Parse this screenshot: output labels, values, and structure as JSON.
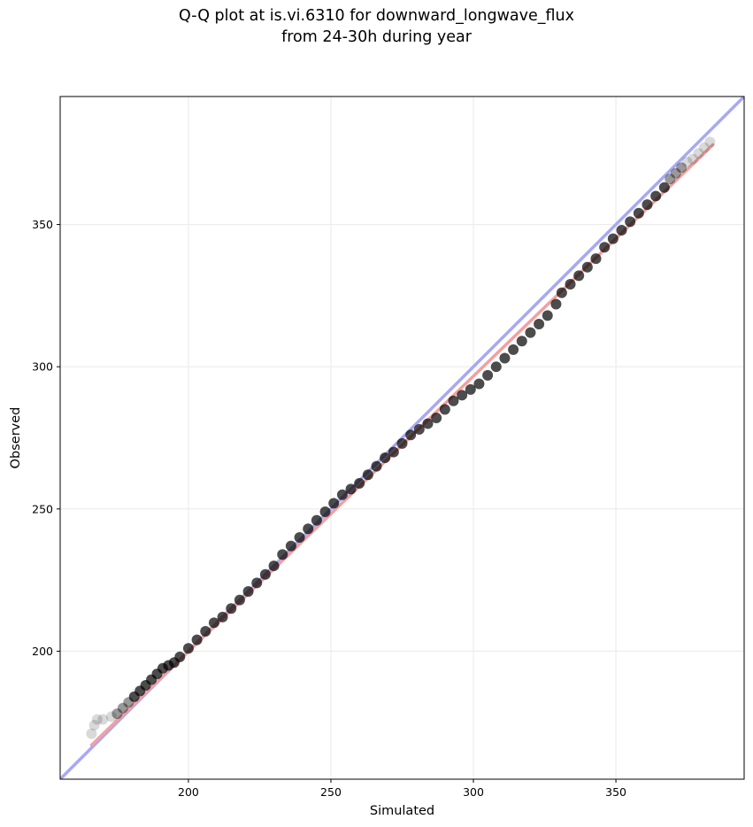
{
  "chart_data": {
    "type": "scatter",
    "title": "Q-Q plot at is.vi.6310 for downward_longwave_flux",
    "subtitle": "from 24-30h during year",
    "xlabel": "Simulated",
    "ylabel": "Observed",
    "xlim": [
      155,
      395
    ],
    "ylim": [
      155,
      395
    ],
    "x_ticks": [
      200,
      250,
      300,
      350
    ],
    "y_ticks": [
      200,
      250,
      300,
      350
    ],
    "grid": true,
    "reference_line": {
      "from": [
        155,
        155
      ],
      "to": [
        395,
        395
      ],
      "color": "#a8a8f5"
    },
    "fit_line": {
      "from": [
        166,
        167
      ],
      "to": [
        384,
        378
      ],
      "color": "#f2a0a0"
    },
    "series": [
      {
        "values": [
          [
            166,
            171
          ],
          [
            167,
            174
          ],
          [
            168,
            176
          ],
          [
            170,
            176
          ],
          [
            173,
            177
          ],
          [
            175,
            178
          ],
          [
            177,
            180
          ],
          [
            179,
            182
          ],
          [
            181,
            184
          ],
          [
            183,
            186
          ],
          [
            185,
            188
          ],
          [
            187,
            190
          ],
          [
            189,
            192
          ],
          [
            191,
            194
          ],
          [
            193,
            195
          ],
          [
            195,
            196
          ],
          [
            197,
            198
          ],
          [
            200,
            201
          ],
          [
            203,
            204
          ],
          [
            206,
            207
          ],
          [
            209,
            210
          ],
          [
            212,
            212
          ],
          [
            215,
            215
          ],
          [
            218,
            218
          ],
          [
            221,
            221
          ],
          [
            224,
            224
          ],
          [
            227,
            227
          ],
          [
            230,
            230
          ],
          [
            233,
            234
          ],
          [
            236,
            237
          ],
          [
            239,
            240
          ],
          [
            242,
            243
          ],
          [
            245,
            246
          ],
          [
            248,
            249
          ],
          [
            251,
            252
          ],
          [
            254,
            255
          ],
          [
            257,
            257
          ],
          [
            260,
            259
          ],
          [
            263,
            262
          ],
          [
            266,
            265
          ],
          [
            269,
            268
          ],
          [
            272,
            270
          ],
          [
            275,
            273
          ],
          [
            278,
            276
          ],
          [
            281,
            278
          ],
          [
            284,
            280
          ],
          [
            287,
            282
          ],
          [
            290,
            285
          ],
          [
            293,
            288
          ],
          [
            296,
            290
          ],
          [
            299,
            292
          ],
          [
            302,
            294
          ],
          [
            305,
            297
          ],
          [
            308,
            300
          ],
          [
            311,
            303
          ],
          [
            314,
            306
          ],
          [
            317,
            309
          ],
          [
            320,
            312
          ],
          [
            323,
            315
          ],
          [
            326,
            318
          ],
          [
            329,
            322
          ],
          [
            331,
            326
          ],
          [
            334,
            329
          ],
          [
            337,
            332
          ],
          [
            340,
            335
          ],
          [
            343,
            338
          ],
          [
            346,
            342
          ],
          [
            349,
            345
          ],
          [
            352,
            348
          ],
          [
            355,
            351
          ],
          [
            358,
            354
          ],
          [
            361,
            357
          ],
          [
            364,
            360
          ],
          [
            367,
            363
          ],
          [
            369,
            366
          ],
          [
            371,
            368
          ],
          [
            373,
            370
          ],
          [
            375,
            372
          ],
          [
            377,
            373
          ],
          [
            379,
            375
          ],
          [
            381,
            377
          ],
          [
            383,
            379
          ]
        ]
      }
    ]
  }
}
